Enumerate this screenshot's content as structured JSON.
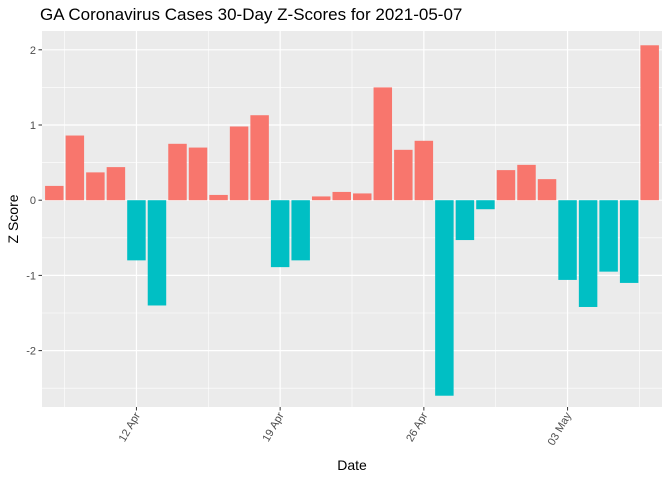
{
  "chart_data": {
    "type": "bar",
    "title": "GA Coronavirus Cases 30-Day Z-Scores for 2021-05-07",
    "xlabel": "Date",
    "ylabel": "Z Score",
    "x_tick_labels": [
      "12 Apr",
      "19 Apr",
      "26 Apr",
      "03 May"
    ],
    "x_tick_day_index": [
      5,
      12,
      19,
      26
    ],
    "y_ticks": [
      -2,
      -1,
      0,
      1,
      2
    ],
    "y_tick_labels": [
      "-2",
      "-1",
      "0",
      "1",
      "2"
    ],
    "ylim": [
      -2.75,
      2.25
    ],
    "first_date": "2021-04-07",
    "dates": [
      "2021-04-08",
      "2021-04-09",
      "2021-04-10",
      "2021-04-11",
      "2021-04-12",
      "2021-04-13",
      "2021-04-14",
      "2021-04-15",
      "2021-04-16",
      "2021-04-17",
      "2021-04-18",
      "2021-04-19",
      "2021-04-20",
      "2021-04-21",
      "2021-04-22",
      "2021-04-23",
      "2021-04-24",
      "2021-04-25",
      "2021-04-26",
      "2021-04-27",
      "2021-04-28",
      "2021-04-29",
      "2021-04-30",
      "2021-05-01",
      "2021-05-02",
      "2021-05-03",
      "2021-05-04",
      "2021-05-05",
      "2021-05-06",
      "2021-05-07"
    ],
    "values": [
      0.19,
      0.86,
      0.37,
      0.44,
      -0.8,
      -1.4,
      0.75,
      0.7,
      0.07,
      0.98,
      1.13,
      -0.89,
      -0.8,
      0.05,
      0.11,
      0.09,
      1.5,
      0.67,
      0.79,
      -2.6,
      -0.53,
      -0.12,
      0.4,
      0.47,
      0.28,
      -1.06,
      -1.42,
      -0.95,
      -1.1,
      2.06
    ],
    "positive_color": "#F8766D",
    "negative_color": "#00BFC4",
    "panel_color": "#EBEBEB",
    "grid_color": "#FFFFFF",
    "grid": true,
    "legend": "none"
  }
}
